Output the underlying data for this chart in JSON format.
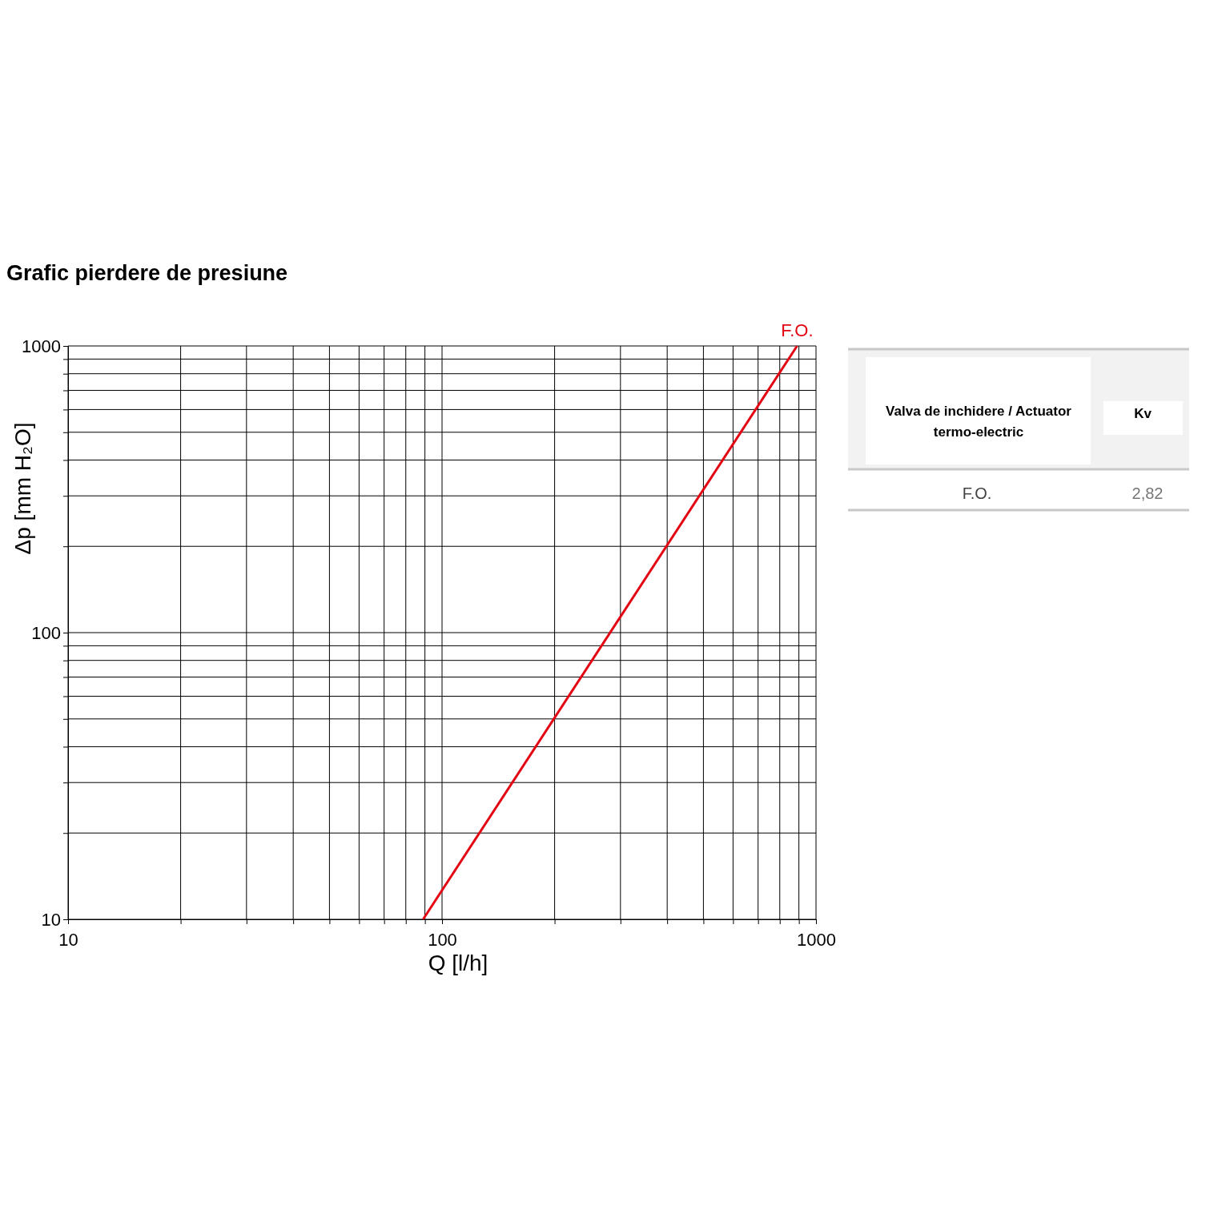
{
  "chart_data": [
    {
      "type": "line",
      "title": "Grafic pierdere de presiune",
      "xlabel": "Q [l/h]",
      "ylabel": "Δp [mm H₂O]",
      "log": "xy",
      "grid": true,
      "marker": "none",
      "line_style": "solid",
      "xlim": [
        10,
        1000
      ],
      "ylim": [
        10,
        1000
      ],
      "xticks": [
        10,
        {
          "value": 20,
          "label": null
        },
        {
          "value": 30,
          "label": null
        },
        {
          "value": 40,
          "label": null
        },
        {
          "value": 50,
          "label": null
        },
        {
          "value": 60,
          "label": null
        },
        {
          "value": 70,
          "label": null
        },
        {
          "value": 80,
          "label": null
        },
        {
          "value": 90,
          "label": null
        },
        100,
        {
          "value": 200,
          "label": null
        },
        {
          "value": 300,
          "label": null
        },
        {
          "value": 400,
          "label": null
        },
        {
          "value": 500,
          "label": null
        },
        {
          "value": 600,
          "label": null
        },
        {
          "value": 700,
          "label": null
        },
        {
          "value": 800,
          "label": null
        },
        {
          "value": 900,
          "label": null
        },
        1000
      ],
      "yticks": [
        10,
        {
          "value": 20,
          "label": null
        },
        {
          "value": 30,
          "label": null
        },
        {
          "value": 40,
          "label": null
        },
        {
          "value": 50,
          "label": null
        },
        {
          "value": 60,
          "label": null
        },
        {
          "value": 70,
          "label": null
        },
        {
          "value": 80,
          "label": null
        },
        {
          "value": 90,
          "label": null
        },
        100,
        {
          "value": 200,
          "label": null
        },
        {
          "value": 300,
          "label": null
        },
        {
          "value": 400,
          "label": null
        },
        {
          "value": 500,
          "label": null
        },
        {
          "value": 600,
          "label": null
        },
        {
          "value": 700,
          "label": null
        },
        {
          "value": 800,
          "label": null
        },
        {
          "value": 900,
          "label": null
        },
        1000
      ],
      "series": [
        {
          "name": "F.O.",
          "color": "#e30613",
          "x": [
            89,
            890
          ],
          "values": [
            10,
            1000
          ]
        }
      ]
    },
    {
      "type": "other",
      "annotations": [
        "Valva de inchidere / Actuator termo-electric",
        "Kv",
        "F.O.",
        "2,82"
      ]
    }
  ]
}
